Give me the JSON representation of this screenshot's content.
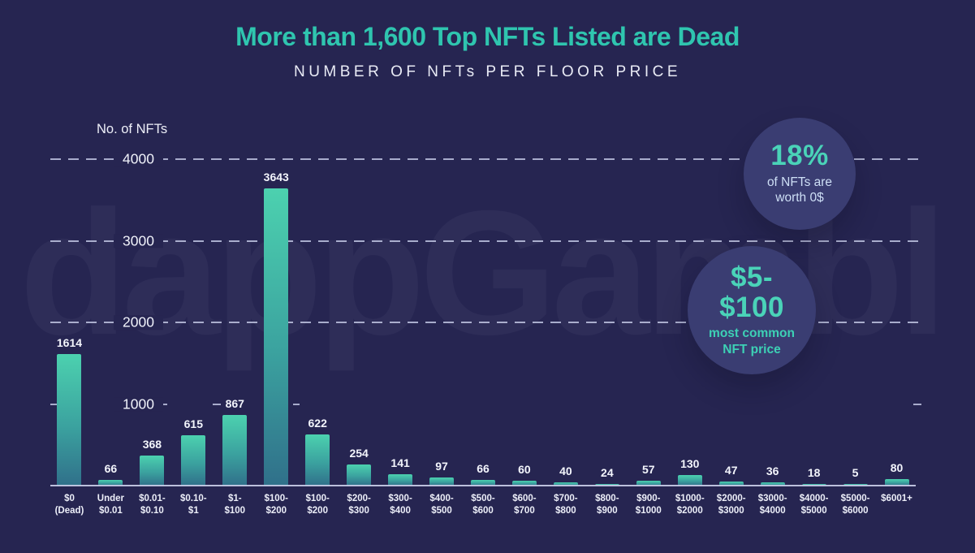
{
  "header": {
    "title": "More than 1,600 Top NFTs Listed are Dead",
    "subtitle": "NUMBER OF NFTs PER FLOOR PRICE"
  },
  "watermark": {
    "text": "dappGambl"
  },
  "badges": {
    "zero": {
      "value": "18%",
      "caption": "of NFTs are\nworth 0$"
    },
    "common": {
      "value": "$5-\n$100",
      "caption": "most common\nNFT price"
    }
  },
  "chart_data": {
    "type": "bar",
    "title": "More than 1,600 Top NFTs Listed are Dead",
    "subtitle": "NUMBER OF NFTs PER FLOOR PRICE",
    "ylabel": "No. of NFTs",
    "xlabel": "",
    "categories": [
      "$0\n(Dead)",
      "Under\n$0.01",
      "$0.01-\n$0.10",
      "$0.10-\n$1",
      "$1-\n$100",
      "$100-\n$200",
      "$100-\n$200",
      "$200-\n$300",
      "$300-\n$400",
      "$400-\n$500",
      "$500-\n$600",
      "$600-\n$700",
      "$700-\n$800",
      "$800-\n$900",
      "$900-\n$1000",
      "$1000-\n$2000",
      "$2000-\n$3000",
      "$3000-\n$4000",
      "$4000-\n$5000",
      "$5000-\n$6000",
      "$6001+"
    ],
    "values": [
      1614,
      66,
      368,
      615,
      867,
      3643,
      622,
      254,
      141,
      97,
      66,
      60,
      40,
      24,
      57,
      130,
      47,
      36,
      18,
      5,
      80
    ],
    "y_ticks": [
      1000,
      2000,
      3000,
      4000
    ],
    "ylim": [
      0,
      4200
    ],
    "grid": "horizontal-dashed",
    "legend": "none",
    "annotations": [
      {
        "text": "18% of NFTs are worth 0$"
      },
      {
        "text": "$5-$100 most common NFT price"
      }
    ],
    "colors": {
      "background": "#262551",
      "accent_teal": "#2FC5AF",
      "bar_gradient_top": "#4CD1AF",
      "bar_gradient_bottom": "#30708A",
      "badge_circle": "#3A3D72",
      "badge_caption_light": "#CEDFF6",
      "gridline": "#CDD2EE",
      "text_light": "#F0F2FA"
    }
  }
}
